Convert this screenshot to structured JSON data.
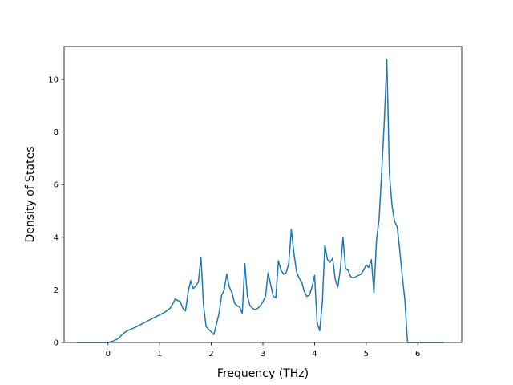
{
  "chart_data": {
    "type": "line",
    "title": "",
    "xlabel": "Frequency (THz)",
    "ylabel": "Density of States",
    "xlim": [
      -0.85,
      6.85
    ],
    "ylim": [
      0,
      11.25
    ],
    "xticks": [
      0,
      1,
      2,
      3,
      4,
      5,
      6
    ],
    "yticks": [
      0,
      2,
      4,
      6,
      8,
      10
    ],
    "grid": false,
    "color": "#1f77b4",
    "series": [
      {
        "x": [
          -0.6,
          0.0,
          0.1,
          0.2,
          0.3,
          0.35,
          0.4,
          0.5,
          0.6,
          0.7,
          0.8,
          0.9,
          1.0,
          1.1,
          1.2,
          1.25,
          1.3,
          1.35,
          1.4,
          1.45,
          1.5,
          1.55,
          1.6,
          1.65,
          1.7,
          1.75,
          1.8,
          1.85,
          1.9,
          2.0,
          2.05,
          2.1,
          2.15,
          2.2,
          2.25,
          2.3,
          2.35,
          2.4,
          2.45,
          2.5,
          2.55,
          2.6,
          2.65,
          2.7,
          2.75,
          2.8,
          2.85,
          2.9,
          2.95,
          3.0,
          3.05,
          3.1,
          3.15,
          3.2,
          3.25,
          3.3,
          3.35,
          3.4,
          3.45,
          3.5,
          3.55,
          3.6,
          3.65,
          3.7,
          3.75,
          3.8,
          3.85,
          3.9,
          3.95,
          4.0,
          4.05,
          4.1,
          4.15,
          4.2,
          4.25,
          4.3,
          4.35,
          4.4,
          4.45,
          4.5,
          4.55,
          4.6,
          4.65,
          4.7,
          4.75,
          4.8,
          4.85,
          4.9,
          4.95,
          5.0,
          5.05,
          5.1,
          5.15,
          5.2,
          5.25,
          5.3,
          5.35,
          5.4,
          5.45,
          5.5,
          5.55,
          5.6,
          5.65,
          5.7,
          5.75,
          5.8,
          5.85,
          5.9,
          6.0,
          6.5
        ],
        "y": [
          0.0,
          0.0,
          0.05,
          0.15,
          0.35,
          0.42,
          0.47,
          0.55,
          0.65,
          0.75,
          0.85,
          0.95,
          1.05,
          1.15,
          1.3,
          1.45,
          1.65,
          1.6,
          1.55,
          1.3,
          1.2,
          1.9,
          2.35,
          2.05,
          2.15,
          2.3,
          3.25,
          1.4,
          0.6,
          0.4,
          0.3,
          0.7,
          1.1,
          1.8,
          2.0,
          2.6,
          2.1,
          1.9,
          1.5,
          1.4,
          1.35,
          1.1,
          3.0,
          1.75,
          1.4,
          1.3,
          1.25,
          1.3,
          1.4,
          1.55,
          1.75,
          2.65,
          2.2,
          1.75,
          1.7,
          3.1,
          2.75,
          2.6,
          2.65,
          3.0,
          4.3,
          3.4,
          2.7,
          2.45,
          2.3,
          1.95,
          1.75,
          1.8,
          2.1,
          2.55,
          0.75,
          0.45,
          1.5,
          3.7,
          3.15,
          3.05,
          3.2,
          2.4,
          2.1,
          2.8,
          4.0,
          2.8,
          2.75,
          2.5,
          2.45,
          2.5,
          2.55,
          2.6,
          2.75,
          2.95,
          2.85,
          3.15,
          1.9,
          3.9,
          4.7,
          6.5,
          8.4,
          10.75,
          6.4,
          5.2,
          4.6,
          4.4,
          3.5,
          2.5,
          1.6,
          0.0,
          0.0,
          0.0,
          0.0,
          0.0
        ]
      }
    ]
  }
}
